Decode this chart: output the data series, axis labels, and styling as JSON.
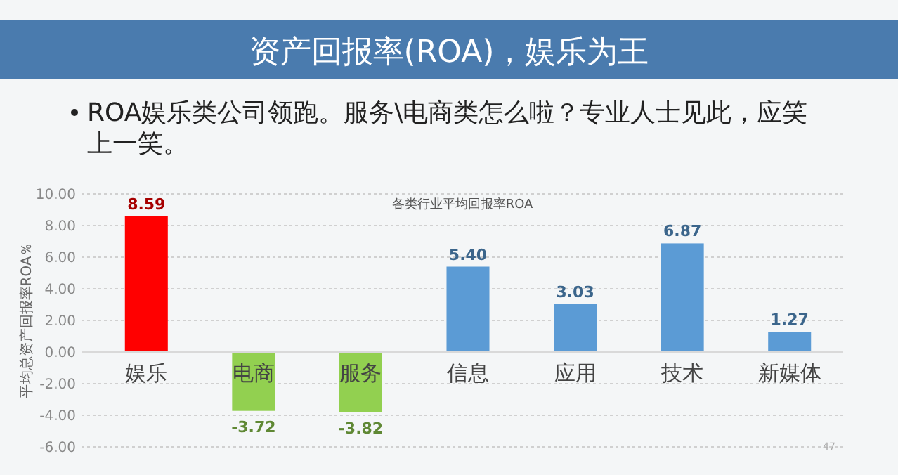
{
  "chart_data": {
    "type": "bar",
    "title": "资产回报率(ROA)，娱乐为王",
    "subtitle": "ROA娱乐类公司领跑。服务\\电商类怎么啦？专业人士见此，应笑上一笑。",
    "annotations": [
      "各类行业平均回报率ROA",
      "47"
    ],
    "ylabel": "平均总资产回报率ROA％",
    "categories": [
      "娱乐",
      "电商",
      "服务",
      "信息",
      "应用",
      "技术",
      "新媒体"
    ],
    "values": [
      8.59,
      -3.72,
      -3.82,
      5.4,
      3.03,
      6.87,
      1.27
    ],
    "value_labels": [
      "8.59",
      "-3.72",
      "-3.82",
      "5.40",
      "3.03",
      "6.87",
      "1.27"
    ],
    "colors": [
      "#ff0000",
      "#92d050",
      "#92d050",
      "#5b9bd5",
      "#5b9bd5",
      "#5b9bd5",
      "#5b9bd5"
    ],
    "ylim": [
      -6,
      10
    ],
    "yticks": [
      {
        "value": -6,
        "label": "-6.00"
      },
      {
        "value": -4,
        "label": "-4.00"
      },
      {
        "value": -2,
        "label": "-2.00"
      },
      {
        "value": 0,
        "label": "0.00"
      },
      {
        "value": 2,
        "label": "2.00"
      },
      {
        "value": 4,
        "label": "4.00"
      },
      {
        "value": 6,
        "label": "6.00"
      },
      {
        "value": 8,
        "label": "8.00"
      },
      {
        "value": 10,
        "label": "10.00"
      }
    ],
    "grid": "y"
  }
}
